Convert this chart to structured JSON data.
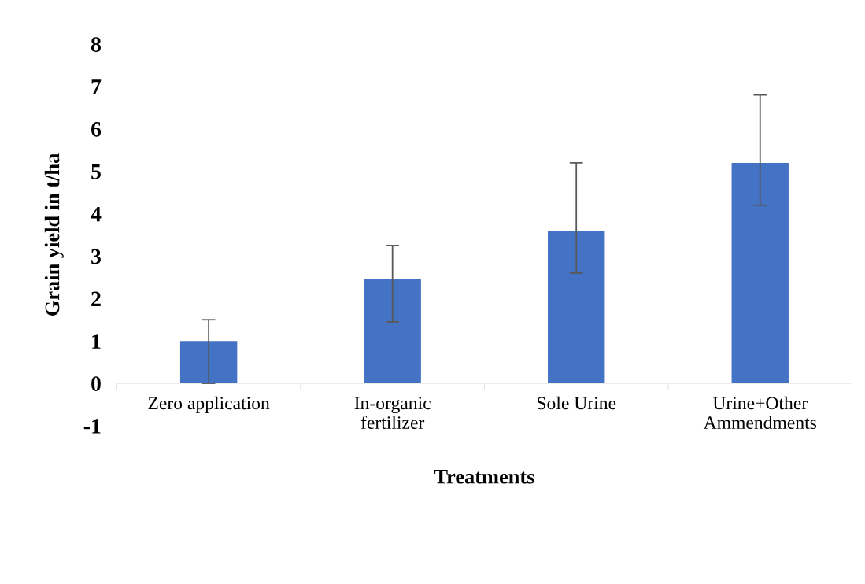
{
  "chart_data": {
    "type": "bar",
    "xlabel": "Treatments",
    "ylabel": "Grain yield in t/ha",
    "categories": [
      "Zero application",
      "In-organic\nfertilizer",
      "Sole Urine",
      "Urine+Other\nAmmendments"
    ],
    "values": [
      1.0,
      2.45,
      3.6,
      5.2
    ],
    "errors": [
      [
        0,
        1.5
      ],
      [
        1.45,
        3.25
      ],
      [
        2.6,
        5.2
      ],
      [
        4.2,
        6.8
      ]
    ],
    "color": "#4472c4",
    "ylim": [
      -1,
      8
    ],
    "yticks": [
      -1,
      0,
      1,
      2,
      3,
      4,
      5,
      6,
      7,
      8
    ],
    "grid": false,
    "legend": false
  }
}
